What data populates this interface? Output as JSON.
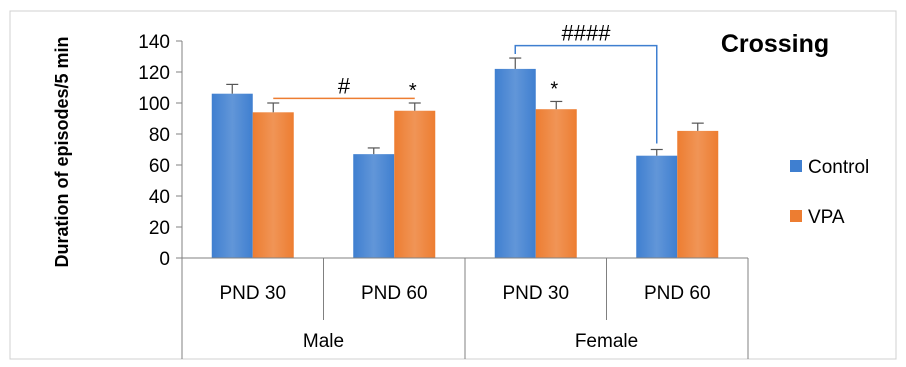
{
  "chart_data": {
    "type": "bar",
    "title": "Crossing",
    "ylabel": "Duration of episodes/5 min",
    "xlabel": "",
    "ylim": [
      0,
      140
    ],
    "yticks": [
      0,
      20,
      40,
      60,
      80,
      100,
      120,
      140
    ],
    "groups": [
      {
        "label": "Male",
        "categories": [
          "PND 30",
          "PND 60"
        ]
      },
      {
        "label": "Female",
        "categories": [
          "PND 30",
          "PND 60"
        ]
      }
    ],
    "categories": [
      "PND 30",
      "PND 60",
      "PND 30",
      "PND 60"
    ],
    "series": [
      {
        "name": "Control",
        "color": "#3f7fd0",
        "values": [
          106,
          67,
          122,
          66
        ],
        "errors": [
          6,
          4,
          7,
          4
        ]
      },
      {
        "name": "VPA",
        "color": "#ed7d31",
        "values": [
          94,
          95,
          96,
          82
        ],
        "errors": [
          6,
          5,
          5,
          5
        ]
      }
    ],
    "legend": {
      "position": "right"
    },
    "grid": false,
    "annotations": [
      {
        "text": "*",
        "category": 1,
        "series": 1
      },
      {
        "text": "*",
        "category": 2,
        "series": 1
      }
    ],
    "comparisons": [
      {
        "text": "#",
        "color": "#ed7d31",
        "from": {
          "category": 0,
          "series": 1
        },
        "to": {
          "category": 1,
          "series": 1
        },
        "level": 103
      },
      {
        "text": "####",
        "color": "#3f7fd0",
        "from": {
          "category": 2,
          "series": 0
        },
        "to": {
          "category": 3,
          "series": 0
        },
        "level": 137
      }
    ]
  }
}
